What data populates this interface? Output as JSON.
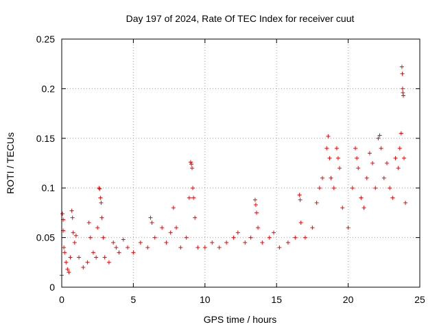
{
  "chart_data": {
    "type": "scatter",
    "title": "Day 197 of 2024, Rate Of TEC Index for receiver cuut",
    "xlabel": "GPS time / hours",
    "ylabel": "ROTI / TECUs",
    "xlim": [
      0,
      25
    ],
    "ylim": [
      0,
      0.25
    ],
    "xticks": [
      0,
      5,
      10,
      15,
      20,
      25
    ],
    "yticks": [
      0,
      0.05,
      0.1,
      0.15,
      0.2,
      0.25
    ],
    "ytick_labels": [
      "0",
      "0.05",
      "0.1",
      "0.15",
      "0.2",
      "0.25"
    ],
    "grid": true,
    "marker": "+",
    "color": "#ff0000",
    "series": [
      {
        "name": "ROTI",
        "points": [
          [
            0.0,
            0.012
          ],
          [
            0.05,
            0.074
          ],
          [
            0.1,
            0.068
          ],
          [
            0.1,
            0.057
          ],
          [
            0.15,
            0.04
          ],
          [
            0.2,
            0.035
          ],
          [
            0.3,
            0.025
          ],
          [
            0.4,
            0.018
          ],
          [
            0.5,
            0.015
          ],
          [
            0.6,
            0.03
          ],
          [
            0.7,
            0.077
          ],
          [
            0.75,
            0.07
          ],
          [
            0.8,
            0.055
          ],
          [
            0.9,
            0.045
          ],
          [
            1.0,
            0.052
          ],
          [
            1.2,
            0.03
          ],
          [
            1.5,
            0.02
          ],
          [
            1.8,
            0.025
          ],
          [
            1.9,
            0.065
          ],
          [
            2.0,
            0.05
          ],
          [
            2.2,
            0.035
          ],
          [
            2.4,
            0.03
          ],
          [
            2.5,
            0.06
          ],
          [
            2.6,
            0.1
          ],
          [
            2.65,
            0.099
          ],
          [
            2.7,
            0.09
          ],
          [
            2.75,
            0.085
          ],
          [
            2.8,
            0.07
          ],
          [
            2.9,
            0.05
          ],
          [
            3.0,
            0.03
          ],
          [
            3.3,
            0.025
          ],
          [
            3.6,
            0.045
          ],
          [
            3.8,
            0.04
          ],
          [
            4.0,
            0.035
          ],
          [
            4.3,
            0.048
          ],
          [
            4.6,
            0.04
          ],
          [
            5.0,
            0.035
          ],
          [
            5.5,
            0.045
          ],
          [
            6.0,
            0.04
          ],
          [
            6.2,
            0.07
          ],
          [
            6.3,
            0.065
          ],
          [
            6.5,
            0.05
          ],
          [
            7.0,
            0.06
          ],
          [
            7.3,
            0.045
          ],
          [
            7.6,
            0.055
          ],
          [
            7.8,
            0.08
          ],
          [
            8.0,
            0.06
          ],
          [
            8.3,
            0.04
          ],
          [
            8.7,
            0.05
          ],
          [
            8.9,
            0.09
          ],
          [
            9.0,
            0.126
          ],
          [
            9.05,
            0.124
          ],
          [
            9.1,
            0.12
          ],
          [
            9.15,
            0.1
          ],
          [
            9.2,
            0.09
          ],
          [
            9.3,
            0.07
          ],
          [
            9.5,
            0.04
          ],
          [
            10.0,
            0.04
          ],
          [
            10.5,
            0.045
          ],
          [
            11.0,
            0.04
          ],
          [
            11.5,
            0.045
          ],
          [
            12.0,
            0.05
          ],
          [
            12.3,
            0.055
          ],
          [
            12.8,
            0.045
          ],
          [
            13.2,
            0.05
          ],
          [
            13.5,
            0.088
          ],
          [
            13.55,
            0.083
          ],
          [
            13.6,
            0.075
          ],
          [
            13.7,
            0.06
          ],
          [
            14.0,
            0.045
          ],
          [
            14.5,
            0.05
          ],
          [
            14.8,
            0.055
          ],
          [
            15.2,
            0.04
          ],
          [
            15.8,
            0.045
          ],
          [
            16.3,
            0.05
          ],
          [
            16.6,
            0.093
          ],
          [
            16.65,
            0.088
          ],
          [
            16.7,
            0.065
          ],
          [
            17.0,
            0.05
          ],
          [
            17.5,
            0.06
          ],
          [
            17.8,
            0.085
          ],
          [
            18.0,
            0.1
          ],
          [
            18.2,
            0.11
          ],
          [
            18.5,
            0.14
          ],
          [
            18.6,
            0.152
          ],
          [
            18.7,
            0.13
          ],
          [
            18.8,
            0.11
          ],
          [
            19.0,
            0.1
          ],
          [
            19.2,
            0.14
          ],
          [
            19.3,
            0.13
          ],
          [
            19.4,
            0.12
          ],
          [
            19.6,
            0.08
          ],
          [
            20.0,
            0.06
          ],
          [
            20.3,
            0.1
          ],
          [
            20.5,
            0.14
          ],
          [
            20.6,
            0.13
          ],
          [
            20.7,
            0.12
          ],
          [
            20.9,
            0.09
          ],
          [
            21.1,
            0.08
          ],
          [
            21.3,
            0.11
          ],
          [
            21.5,
            0.135
          ],
          [
            21.7,
            0.125
          ],
          [
            21.9,
            0.1
          ],
          [
            22.1,
            0.15
          ],
          [
            22.2,
            0.153
          ],
          [
            22.3,
            0.14
          ],
          [
            22.5,
            0.11
          ],
          [
            22.7,
            0.125
          ],
          [
            22.9,
            0.1
          ],
          [
            23.1,
            0.09
          ],
          [
            23.3,
            0.13
          ],
          [
            23.5,
            0.12
          ],
          [
            23.6,
            0.14
          ],
          [
            23.7,
            0.155
          ],
          [
            23.75,
            0.222
          ],
          [
            23.78,
            0.215
          ],
          [
            23.8,
            0.2
          ],
          [
            23.82,
            0.196
          ],
          [
            23.85,
            0.193
          ],
          [
            23.9,
            0.13
          ],
          [
            24.0,
            0.085
          ]
        ]
      }
    ]
  }
}
